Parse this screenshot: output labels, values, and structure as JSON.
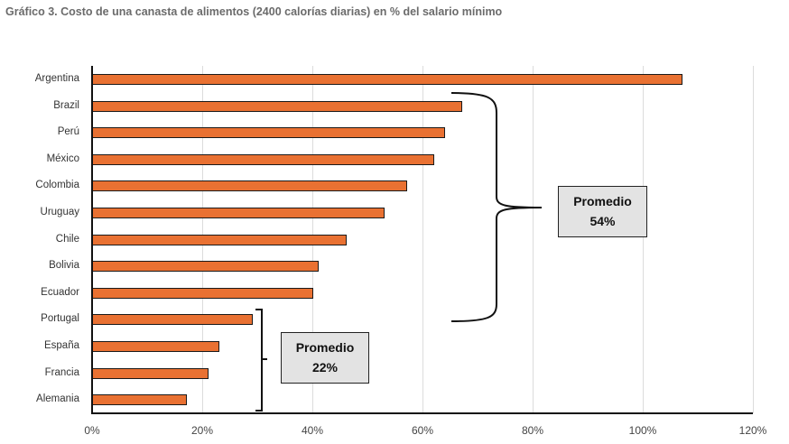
{
  "title": "Gráfico 3. Costo de una canasta de alimentos (2400 calorías diarias) en % del salario mínimo",
  "chart_data": {
    "type": "bar",
    "orientation": "horizontal",
    "title": "Gráfico 3. Costo de una canasta de alimentos (2400 calorías diarias) en % del salario mínimo",
    "xlabel": "",
    "ylabel": "",
    "categories": [
      "Argentina",
      "Brazil",
      "Perú",
      "México",
      "Colombia",
      "Uruguay",
      "Chile",
      "Bolivia",
      "Ecuador",
      "Portugal",
      "España",
      "Francia",
      "Alemania"
    ],
    "values": [
      107,
      67,
      64,
      62,
      57,
      53,
      46,
      41,
      40,
      29,
      23,
      21,
      17
    ],
    "unit": "%",
    "xlim": [
      0,
      120
    ],
    "xticks": [
      "0%",
      "20%",
      "40%",
      "60%",
      "80%",
      "100%",
      "120%"
    ],
    "grid": "vertical",
    "bar_color": "#e97132",
    "annotations": [
      {
        "label": "Promedio",
        "value": "54%",
        "group": [
          "Brazil",
          "Perú",
          "México",
          "Colombia",
          "Uruguay",
          "Chile",
          "Bolivia",
          "Ecuador"
        ]
      },
      {
        "label": "Promedio",
        "value": "22%",
        "group": [
          "Portugal",
          "España",
          "Francia",
          "Alemania"
        ]
      }
    ]
  }
}
